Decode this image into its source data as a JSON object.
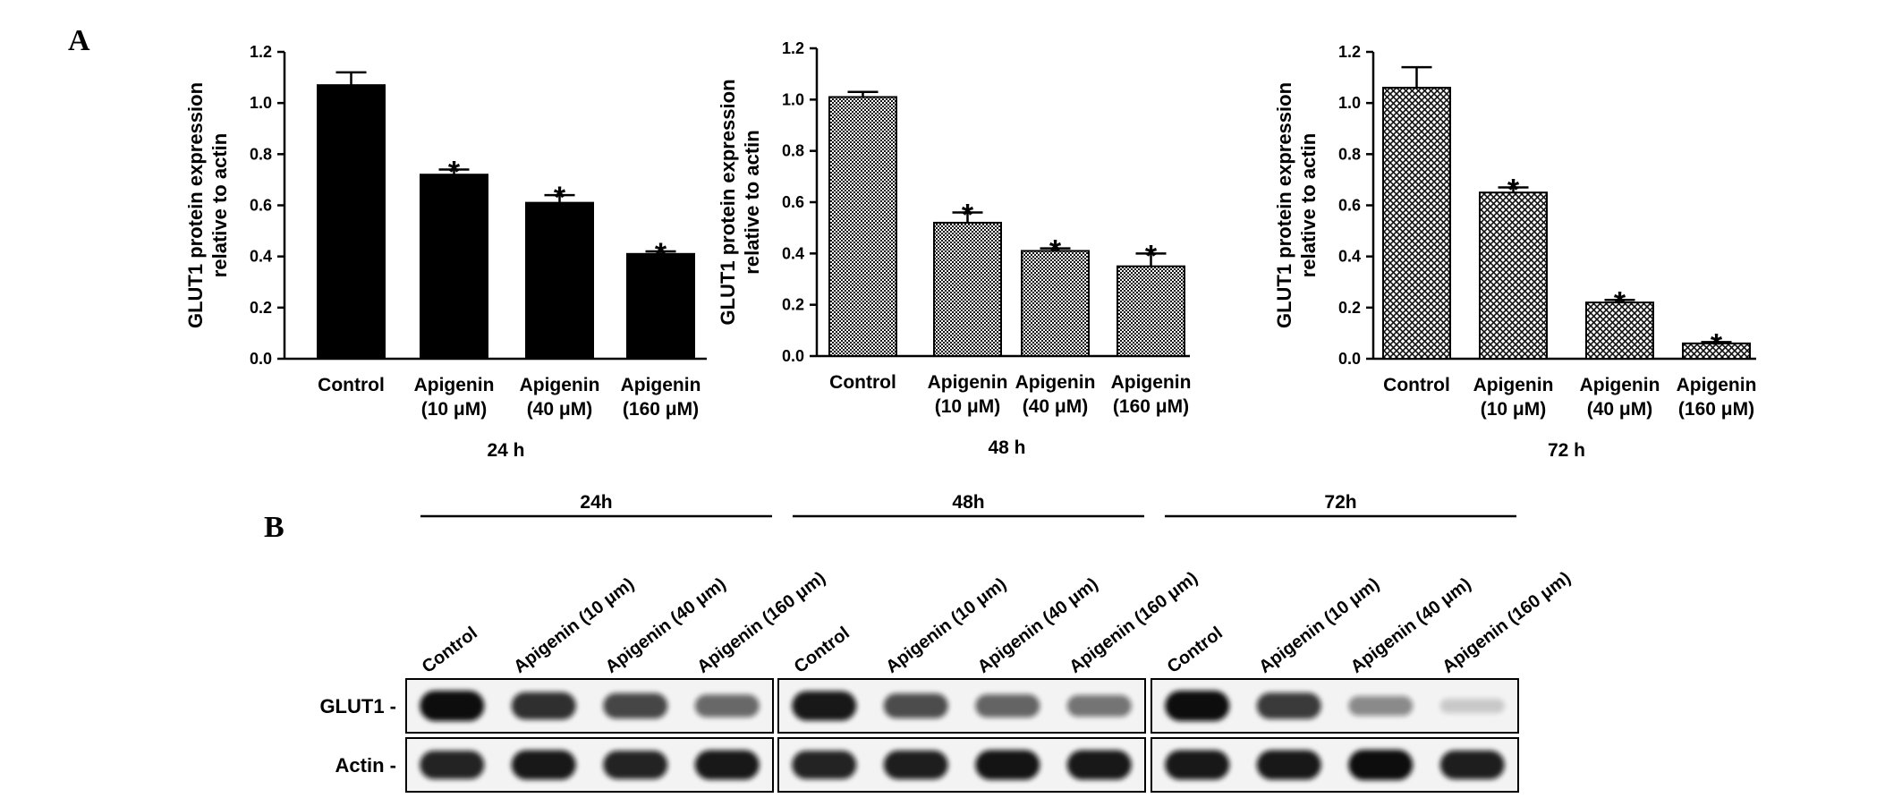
{
  "panels": {
    "a": "A",
    "b": "B"
  },
  "colors": {
    "bar_24h": "#000000",
    "bar_48h_pattern": "dense-dots",
    "bar_72h_pattern": "crosshatch",
    "blot_background": "#f3f3f3",
    "band": "#111111"
  },
  "chart_data": [
    {
      "type": "bar",
      "title": "",
      "xlabel": "24 h",
      "ylabel": "GLUT1 protein expression relative to actin",
      "ylim": [
        0,
        1.2
      ],
      "yticks": [
        "0.0",
        "0.2",
        "0.4",
        "0.6",
        "0.8",
        "1.0",
        "1.2"
      ],
      "categories": [
        "Control",
        "Apigenin (10 μM)",
        "Apigenin (40 μM)",
        "Apigenin (160 μM)"
      ],
      "values": [
        1.07,
        0.72,
        0.61,
        0.41
      ],
      "errors": [
        0.05,
        0.02,
        0.03,
        0.01
      ],
      "significance": [
        "",
        "*",
        "*",
        "*"
      ],
      "grid": false
    },
    {
      "type": "bar",
      "title": "",
      "xlabel": "48 h",
      "ylabel": "GLUT1 protein expression relative to actin",
      "ylim": [
        0,
        1.2
      ],
      "yticks": [
        "0.0",
        "0.2",
        "0.4",
        "0.6",
        "0.8",
        "1.0",
        "1.2"
      ],
      "categories": [
        "Control",
        "Apigenin (10 μM)",
        "Apigenin (40 μM)",
        "Apigenin (160 μM)"
      ],
      "values": [
        1.01,
        0.52,
        0.41,
        0.35
      ],
      "errors": [
        0.02,
        0.04,
        0.01,
        0.05
      ],
      "significance": [
        "",
        "*",
        "*",
        "*"
      ],
      "grid": false
    },
    {
      "type": "bar",
      "title": "",
      "xlabel": "72 h",
      "ylabel": "GLUT1 protein expression relative to actin",
      "ylim": [
        0,
        1.2
      ],
      "yticks": [
        "0.0",
        "0.2",
        "0.4",
        "0.6",
        "0.8",
        "1.0",
        "1.2"
      ],
      "categories": [
        "Control",
        "Apigenin (10 μM)",
        "Apigenin (40 μM)",
        "Apigenin (160 μM)"
      ],
      "values": [
        1.06,
        0.65,
        0.22,
        0.06
      ],
      "errors": [
        0.08,
        0.02,
        0.01,
        0.005
      ],
      "significance": [
        "",
        "*",
        "*",
        "*"
      ],
      "grid": false
    }
  ],
  "blot": {
    "groups": [
      {
        "label": "24h",
        "lanes": [
          "Control",
          "Apigenin (10 μm)",
          "Apigenin (40 μm)",
          "Apigenin (160 μm)"
        ],
        "glut1_intensity": [
          1.0,
          0.85,
          0.75,
          0.6
        ],
        "actin_intensity": [
          0.9,
          0.95,
          0.9,
          0.95
        ]
      },
      {
        "label": "48h",
        "lanes": [
          "Control",
          "Apigenin (10 μm)",
          "Apigenin (40 μm)",
          "Apigenin (160 μm)"
        ],
        "glut1_intensity": [
          0.95,
          0.72,
          0.62,
          0.55
        ],
        "actin_intensity": [
          0.9,
          0.92,
          0.97,
          0.95
        ]
      },
      {
        "label": "72h",
        "lanes": [
          "Control",
          "Apigenin (10 μm)",
          "Apigenin (40 μm)",
          "Apigenin (160 μm)"
        ],
        "glut1_intensity": [
          1.0,
          0.8,
          0.45,
          0.18
        ],
        "actin_intensity": [
          0.95,
          0.95,
          1.0,
          0.92
        ]
      }
    ],
    "rows": [
      "GLUT1 -",
      "Actin -"
    ]
  }
}
